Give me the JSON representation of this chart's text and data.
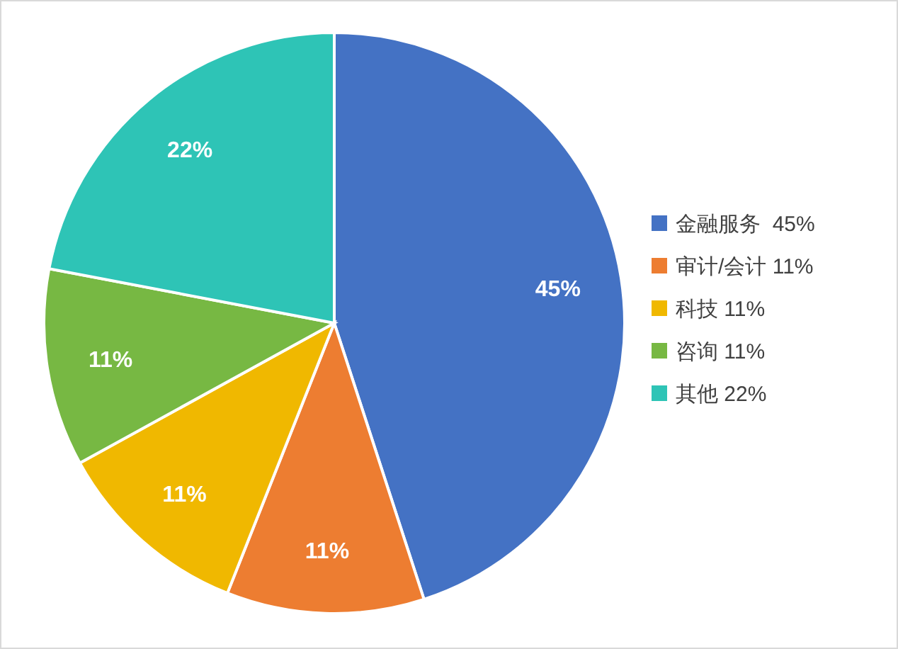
{
  "chart_data": {
    "type": "pie",
    "categories": [
      "金融服务  45%",
      "审计/会计 11%",
      "科技 11%",
      "咨询 11%",
      "其他 22%"
    ],
    "values": [
      45,
      11,
      11,
      11,
      22
    ],
    "value_labels": [
      "45%",
      "11%",
      "11%",
      "11%",
      "22%"
    ],
    "colors": [
      "#4472c4",
      "#ed7d31",
      "#f0b800",
      "#77b843",
      "#2ec4b6"
    ],
    "legend": "right"
  }
}
